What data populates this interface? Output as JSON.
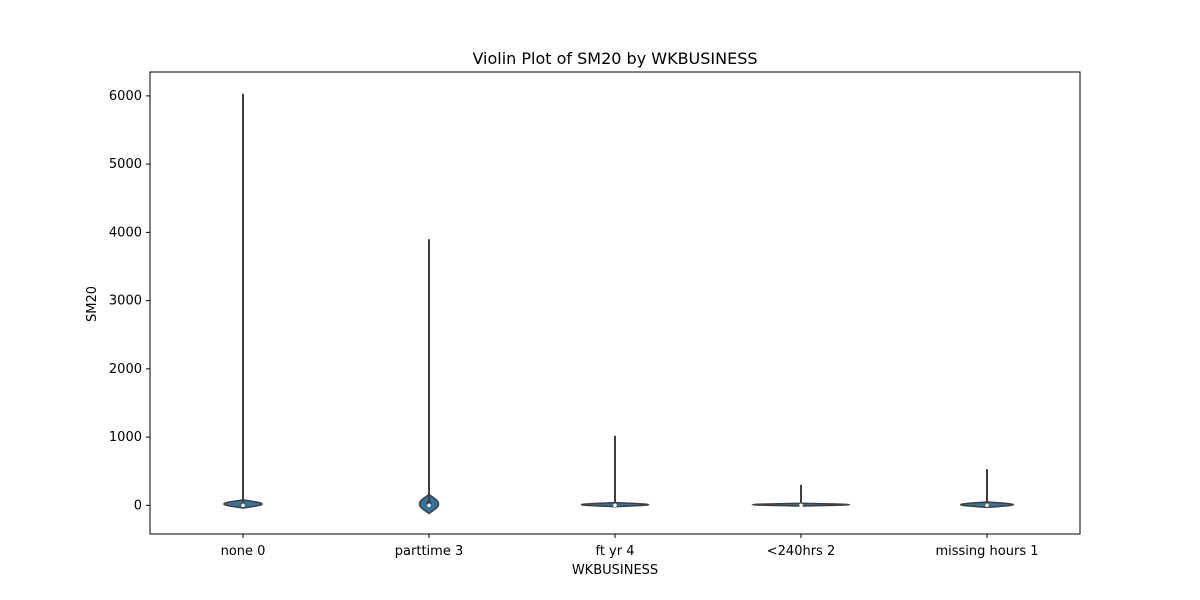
{
  "chart_data": {
    "type": "violin",
    "title": "Violin Plot of SM20 by WKBUSINESS",
    "xlabel": "WKBUSINESS",
    "ylabel": "SM20",
    "ylim": [
      -420,
      6350
    ],
    "yticks": [
      0,
      1000,
      2000,
      3000,
      4000,
      5000,
      6000
    ],
    "categories": [
      "none 0",
      "parttime 3",
      "ft yr 4",
      "<240hrs 2",
      "missing hours 1"
    ],
    "violins": [
      {
        "category": "none 0",
        "min": 0,
        "max": 6030,
        "q1": 0,
        "median": 0,
        "q3": 30,
        "body_low": -40,
        "body_high": 80,
        "body_width": 0.64
      },
      {
        "category": "parttime 3",
        "min": 0,
        "max": 3900,
        "q1": 0,
        "median": 0,
        "q3": 60,
        "body_low": -120,
        "body_high": 160,
        "body_width": 0.32
      },
      {
        "category": "ft yr 4",
        "min": 0,
        "max": 1020,
        "q1": 0,
        "median": 0,
        "q3": 10,
        "body_low": -20,
        "body_high": 40,
        "body_width": 1.12
      },
      {
        "category": "<240hrs 2",
        "min": 0,
        "max": 300,
        "q1": 0,
        "median": 0,
        "q3": 5,
        "body_low": -10,
        "body_high": 30,
        "body_width": 1.6
      },
      {
        "category": "missing hours 1",
        "min": 0,
        "max": 530,
        "q1": 0,
        "median": 0,
        "q3": 20,
        "body_low": -30,
        "body_high": 50,
        "body_width": 0.88
      }
    ],
    "colors": {
      "fill": "#3274a1",
      "line": "#3f3f3f",
      "axis": "#000000"
    },
    "grid": false
  }
}
